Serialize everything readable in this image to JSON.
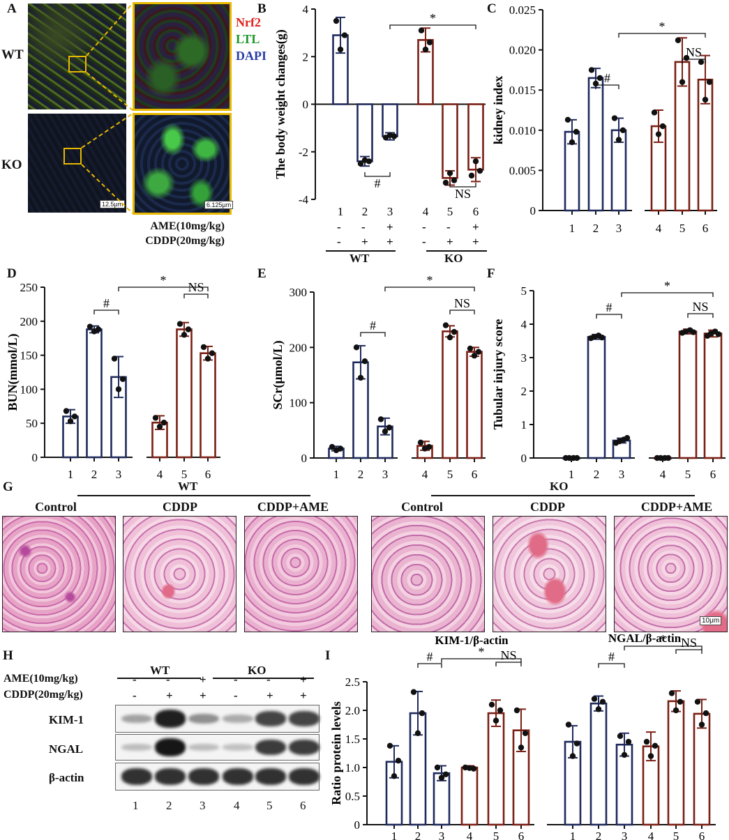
{
  "panels": {
    "A": "A",
    "B": "B",
    "C": "C",
    "D": "D",
    "E": "E",
    "F": "F",
    "G": "G",
    "H": "H",
    "I": "I"
  },
  "colors": {
    "wt": "#1f2a5c",
    "ko": "#7a1f14",
    "nrf2": "#e0201c",
    "ltl": "#1a9a2a",
    "dapi": "#2a3fa8",
    "frame": "#e8b800"
  },
  "panelA": {
    "row_labels": [
      "WT",
      "KO"
    ],
    "legend": [
      "Nrf2",
      "LTL",
      "DAPI"
    ],
    "scale_left": "12.5μm",
    "scale_right": "6.125μm"
  },
  "conditions": {
    "ame_label": "AME(10mg/kg)",
    "cddp_label": "CDDP(20mg/kg)",
    "ame": [
      "-",
      "-",
      "+",
      "-",
      "-",
      "+"
    ],
    "cddp": [
      "-",
      "+",
      "+",
      "-",
      "+",
      "+"
    ],
    "group_wt": "WT",
    "group_ko": "KO"
  },
  "chart_data": [
    {
      "id": "B",
      "type": "bar",
      "ylabel": "The body weight changes(g)",
      "categories": [
        "1",
        "2",
        "3",
        "4",
        "5",
        "6"
      ],
      "values": [
        2.9,
        -2.4,
        -1.35,
        2.7,
        -3.1,
        -2.75
      ],
      "errors": [
        0.75,
        0.2,
        0.15,
        0.5,
        0.3,
        0.5
      ],
      "points": [
        [
          3.5,
          2.9,
          2.3
        ],
        [
          -2.5,
          -2.4,
          -2.35
        ],
        [
          -1.4,
          -1.35,
          -1.3
        ],
        [
          3.1,
          2.6,
          2.3
        ],
        [
          -3.3,
          -3.2,
          -2.9
        ],
        [
          -3.0,
          -2.8,
          -2.4
        ]
      ],
      "ylim": [
        -4,
        4
      ],
      "yticks": [
        -4,
        -2,
        0,
        2,
        4
      ],
      "annotations": [
        {
          "from": 2,
          "to": 3,
          "text": "#"
        },
        {
          "from": 5,
          "to": 6,
          "text": "NS"
        },
        {
          "from": 3,
          "to": 6,
          "text": "*"
        }
      ]
    },
    {
      "id": "C",
      "type": "bar",
      "ylabel": "kidney index",
      "categories": [
        "1",
        "2",
        "3",
        "4",
        "5",
        "6"
      ],
      "values": [
        0.0098,
        0.0165,
        0.01,
        0.0105,
        0.0185,
        0.0163
      ],
      "errors": [
        0.0015,
        0.0012,
        0.0015,
        0.002,
        0.003,
        0.003
      ],
      "points": [
        [
          0.0113,
          0.0098,
          0.0085
        ],
        [
          0.0175,
          0.0165,
          0.0158
        ],
        [
          0.0115,
          0.01,
          0.0088
        ],
        [
          0.0122,
          0.0105,
          0.0095
        ],
        [
          0.0212,
          0.019,
          0.016
        ],
        [
          0.0185,
          0.016,
          0.0138
        ]
      ],
      "ylim": [
        0,
        0.025
      ],
      "yticks": [
        0,
        0.005,
        0.01,
        0.015,
        0.02,
        0.025
      ],
      "ytick_labels": [
        "0",
        "0.005",
        "0.010",
        "0.015",
        "0.020",
        "0.025"
      ],
      "annotations": [
        {
          "from": 2,
          "to": 3,
          "text": "#"
        },
        {
          "from": 5,
          "to": 6,
          "text": "NS"
        },
        {
          "from": 3,
          "to": 6,
          "text": "*"
        }
      ]
    },
    {
      "id": "D",
      "type": "bar",
      "ylabel": "BUN(mmol/L)",
      "categories": [
        "1",
        "2",
        "3",
        "4",
        "5",
        "6"
      ],
      "values": [
        60,
        188,
        118,
        51,
        188,
        153
      ],
      "errors": [
        10,
        5,
        30,
        10,
        10,
        10
      ],
      "points": [
        [
          68,
          60,
          53
        ],
        [
          192,
          188,
          185
        ],
        [
          145,
          115,
          100
        ],
        [
          58,
          51,
          45
        ],
        [
          196,
          188,
          180
        ],
        [
          162,
          153,
          145
        ]
      ],
      "ylim": [
        0,
        250
      ],
      "yticks": [
        0,
        50,
        100,
        150,
        200,
        250
      ],
      "annotations": [
        {
          "from": 2,
          "to": 3,
          "text": "#"
        },
        {
          "from": 5,
          "to": 6,
          "text": "NS"
        },
        {
          "from": 3,
          "to": 6,
          "text": "*"
        }
      ]
    },
    {
      "id": "E",
      "type": "bar",
      "ylabel": "SCr(μmol/L)",
      "categories": [
        "1",
        "2",
        "3",
        "4",
        "5",
        "6"
      ],
      "values": [
        17,
        173,
        57,
        22,
        229,
        192
      ],
      "errors": [
        4,
        30,
        15,
        8,
        10,
        8
      ],
      "points": [
        [
          20,
          17,
          14
        ],
        [
          200,
          175,
          145
        ],
        [
          70,
          55,
          48
        ],
        [
          28,
          20,
          17
        ],
        [
          240,
          228,
          218
        ],
        [
          198,
          192,
          185
        ]
      ],
      "ylim": [
        0,
        300
      ],
      "yticks": [
        0,
        100,
        200,
        300
      ],
      "annotations": [
        {
          "from": 2,
          "to": 3,
          "text": "#"
        },
        {
          "from": 5,
          "to": 6,
          "text": "NS"
        },
        {
          "from": 3,
          "to": 6,
          "text": "*"
        }
      ]
    },
    {
      "id": "F",
      "type": "bar",
      "ylabel": "Tubular injury score",
      "categories": [
        "1",
        "2",
        "3",
        "4",
        "5",
        "6"
      ],
      "values": [
        0,
        3.62,
        0.52,
        0,
        3.78,
        3.72
      ],
      "errors": [
        0,
        0.07,
        0.07,
        0,
        0.07,
        0.1
      ],
      "points": [
        [
          0,
          0,
          0,
          0
        ],
        [
          3.58,
          3.62,
          3.66,
          3.6
        ],
        [
          0.45,
          0.5,
          0.55,
          0.6
        ],
        [
          0,
          0,
          0,
          0
        ],
        [
          3.74,
          3.78,
          3.82,
          3.76
        ],
        [
          3.65,
          3.72,
          3.78,
          3.7
        ]
      ],
      "ylim": [
        0,
        5
      ],
      "yticks": [
        0,
        1,
        2,
        3,
        4,
        5
      ],
      "annotations": [
        {
          "from": 2,
          "to": 3,
          "text": "#"
        },
        {
          "from": 5,
          "to": 6,
          "text": "NS"
        },
        {
          "from": 3,
          "to": 6,
          "text": "*"
        }
      ]
    },
    {
      "id": "I",
      "type": "bar",
      "ylabel": "Ratio protein levels",
      "ylim": [
        0,
        2.5
      ],
      "yticks": [
        0,
        0.5,
        1.0,
        1.5,
        2.0,
        2.5
      ],
      "ytick_labels": [
        "0",
        "0.5",
        "1.0",
        "1.5",
        "2.0",
        "2.5"
      ],
      "groups": [
        {
          "title": "KIM-1/β-actin",
          "categories": [
            "1",
            "2",
            "3",
            "4",
            "5",
            "6"
          ],
          "values": [
            1.1,
            1.95,
            0.9,
            1.0,
            1.95,
            1.65
          ],
          "errors": [
            0.28,
            0.38,
            0.13,
            0.03,
            0.23,
            0.37
          ],
          "points": [
            [
              1.38,
              1.12,
              0.85
            ],
            [
              2.32,
              1.95,
              1.6
            ],
            [
              1.0,
              0.88,
              0.82
            ],
            [
              1.0,
              0.98,
              0.99
            ],
            [
              2.1,
              2.0,
              1.82
            ],
            [
              2.0,
              1.6,
              1.35
            ]
          ],
          "annotations": [
            {
              "from": 2,
              "to": 3,
              "text": "#"
            },
            {
              "from": 5,
              "to": 6,
              "text": "NS"
            },
            {
              "from": 3,
              "to": 6,
              "text": "*"
            }
          ]
        },
        {
          "title": "NGAL/β-actin",
          "categories": [
            "1",
            "2",
            "3",
            "4",
            "5",
            "6"
          ],
          "values": [
            1.45,
            2.12,
            1.4,
            1.37,
            2.16,
            1.94
          ],
          "errors": [
            0.28,
            0.13,
            0.2,
            0.25,
            0.18,
            0.25
          ],
          "points": [
            [
              1.75,
              1.42,
              1.2
            ],
            [
              2.2,
              2.15,
              2.02
            ],
            [
              1.55,
              1.45,
              1.22
            ],
            [
              1.45,
              1.38,
              1.2
            ],
            [
              2.3,
              2.15,
              2.0
            ],
            [
              2.15,
              1.95,
              1.75
            ]
          ],
          "annotations": [
            {
              "from": 2,
              "to": 3,
              "text": "#"
            },
            {
              "from": 5,
              "to": 6,
              "text": "NS"
            },
            {
              "from": 3,
              "to": 6,
              "text": "*"
            }
          ]
        }
      ]
    }
  ],
  "panelG": {
    "group_wt": "WT",
    "group_ko": "KO",
    "titles": [
      "Control",
      "CDDP",
      "CDDP+AME",
      "Control",
      "CDDP",
      "CDDP+AME"
    ],
    "scale": "10μm"
  },
  "panelH": {
    "group_wt": "WT",
    "group_ko": "KO",
    "rows": [
      "KIM-1",
      "NGAL",
      "β-actin"
    ],
    "lanes": [
      "1",
      "2",
      "3",
      "4",
      "5",
      "6"
    ],
    "kim1": [
      0.25,
      0.95,
      0.35,
      0.2,
      0.75,
      0.75
    ],
    "ngal": [
      0.1,
      1.0,
      0.1,
      0.08,
      0.8,
      0.8
    ],
    "actin": [
      0.85,
      0.85,
      0.85,
      0.85,
      0.85,
      0.85
    ]
  }
}
